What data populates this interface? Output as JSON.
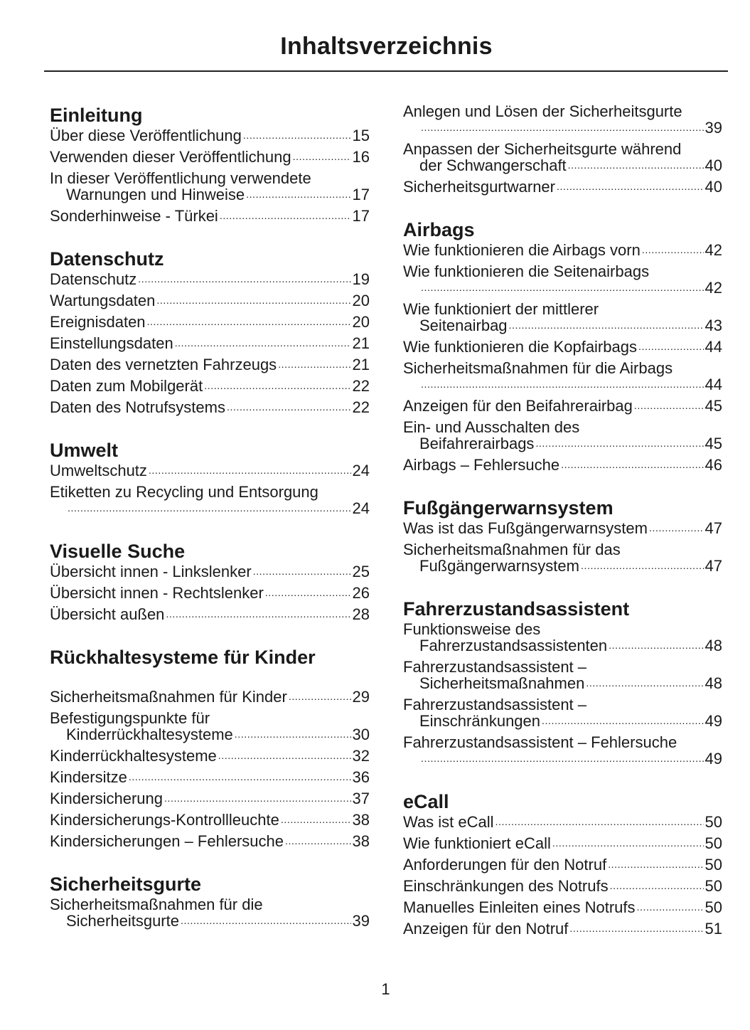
{
  "title": "Inhaltsverzeichnis",
  "page_number": "1",
  "left_column": [
    {
      "heading": "Einleitung",
      "entries": [
        {
          "text": "Über diese Veröffentlichung",
          "page": "15"
        },
        {
          "text": "Verwenden dieser Veröffentlichung",
          "page": "16"
        },
        {
          "text": "In dieser Veröffentlichung verwendete",
          "cont": "Warnungen und Hinweise",
          "page": "17"
        },
        {
          "text": "Sonderhinweise - Türkei",
          "page": "17"
        }
      ]
    },
    {
      "heading": "Datenschutz",
      "entries": [
        {
          "text": "Datenschutz",
          "page": "19"
        },
        {
          "text": "Wartungsdaten",
          "page": "20"
        },
        {
          "text": "Ereignisdaten",
          "page": "20"
        },
        {
          "text": "Einstellungsdaten",
          "page": "21"
        },
        {
          "text": "Daten des vernetzten Fahrzeugs",
          "page": "21"
        },
        {
          "text": "Daten zum Mobilgerät",
          "page": "22"
        },
        {
          "text": "Daten des Notrufsystems",
          "page": "22"
        }
      ]
    },
    {
      "heading": "Umwelt",
      "entries": [
        {
          "text": "Umweltschutz",
          "page": "24"
        },
        {
          "text": "Etiketten zu Recycling und Entsorgung",
          "cont": "",
          "page": "24"
        }
      ]
    },
    {
      "heading": "Visuelle Suche",
      "entries": [
        {
          "text": "Übersicht innen - Linkslenker",
          "page": "25"
        },
        {
          "text": "Übersicht innen - Rechtslenker",
          "page": "26"
        },
        {
          "text": "Übersicht außen",
          "page": "28"
        }
      ]
    },
    {
      "heading": "Rückhaltesysteme für Kinder",
      "gap": true,
      "entries": [
        {
          "text": "Sicherheitsmaßnahmen für Kinder",
          "page": "29"
        },
        {
          "text": "Befestigungspunkte für",
          "cont": "Kinderrückhaltesysteme",
          "page": "30"
        },
        {
          "text": "Kinderrückhaltesysteme",
          "page": "32"
        },
        {
          "text": "Kindersitze",
          "page": "36"
        },
        {
          "text": "Kindersicherung",
          "page": "37"
        },
        {
          "text": "Kindersicherungs-Kontrollleuchte",
          "page": "38"
        },
        {
          "text": "Kindersicherungen – Fehlersuche",
          "page": "38"
        }
      ]
    },
    {
      "heading": "Sicherheitsgurte",
      "entries": [
        {
          "text": "Sicherheitsmaßnahmen für die",
          "cont": "Sicherheitsgurte",
          "page": "39"
        }
      ]
    }
  ],
  "right_column": [
    {
      "heading": "",
      "entries": [
        {
          "text": "Anlegen und Lösen der Sicherheitsgurte",
          "cont": "",
          "page": "39"
        },
        {
          "text": "Anpassen der Sicherheitsgurte während",
          "cont": "der Schwangerschaft",
          "page": "40"
        },
        {
          "text": "Sicherheitsgurtwarner",
          "page": "40"
        }
      ]
    },
    {
      "heading": "Airbags",
      "entries": [
        {
          "text": "Wie funktionieren die Airbags vorn",
          "page": "42"
        },
        {
          "text": "Wie funktionieren die Seitenairbags",
          "cont": "",
          "page": "42"
        },
        {
          "text": "Wie funktioniert der mittlerer",
          "cont": "Seitenairbag",
          "page": "43"
        },
        {
          "text": "Wie funktionieren die Kopfairbags",
          "page": "44"
        },
        {
          "text": "Sicherheitsmaßnahmen für die Airbags",
          "cont": "",
          "page": "44"
        },
        {
          "text": "Anzeigen für den Beifahrerairbag",
          "page": "45"
        },
        {
          "text": "Ein- und Ausschalten des",
          "cont": "Beifahrerairbags",
          "page": "45"
        },
        {
          "text": "Airbags – Fehlersuche",
          "page": "46"
        }
      ]
    },
    {
      "heading": "Fußgängerwarnsystem",
      "entries": [
        {
          "text": "Was ist das Fußgängerwarnsystem",
          "page": "47"
        },
        {
          "text": "Sicherheitsmaßnahmen für das",
          "cont": "Fußgängerwarnsystem",
          "page": "47"
        }
      ]
    },
    {
      "heading": "Fahrerzustandsassistent",
      "entries": [
        {
          "text": "Funktionsweise des",
          "cont": "Fahrerzustandsassistenten",
          "page": "48"
        },
        {
          "text": "Fahrerzustandsassistent –",
          "cont": "Sicherheitsmaßnahmen",
          "page": "48"
        },
        {
          "text": "Fahrerzustandsassistent –",
          "cont": "Einschränkungen",
          "page": "49"
        },
        {
          "text": "Fahrerzustandsassistent – Fehlersuche",
          "cont": "",
          "page": "49"
        }
      ]
    },
    {
      "heading": "eCall",
      "entries": [
        {
          "text": "Was ist eCall",
          "page": "50"
        },
        {
          "text": "Wie funktioniert eCall",
          "page": "50"
        },
        {
          "text": "Anforderungen für den Notruf",
          "page": "50"
        },
        {
          "text": "Einschränkungen des Notrufs",
          "page": "50"
        },
        {
          "text": "Manuelles Einleiten eines Notrufs",
          "page": "50"
        },
        {
          "text": "Anzeigen für den Notruf",
          "page": "51"
        }
      ]
    }
  ]
}
